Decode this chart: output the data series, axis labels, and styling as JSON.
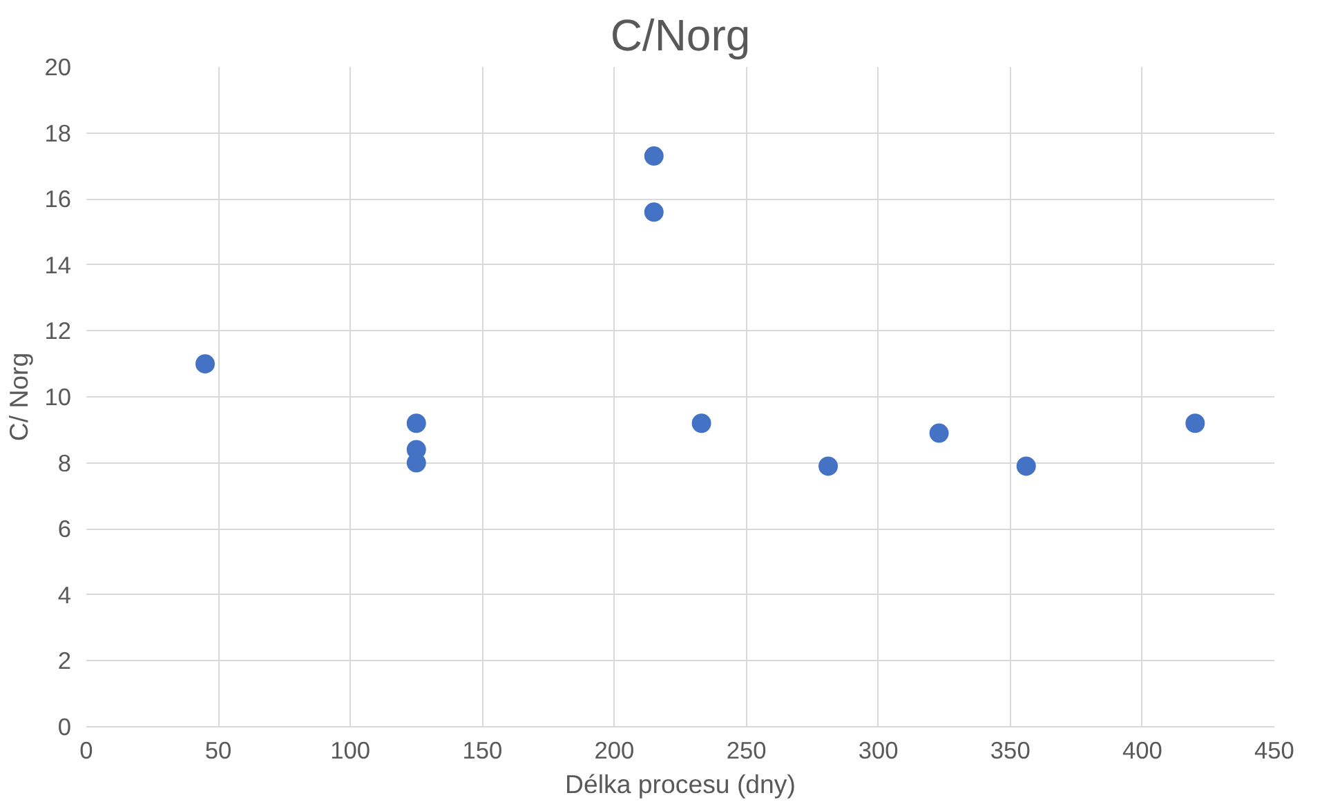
{
  "chart_data": {
    "type": "scatter",
    "title": "C/Norg",
    "xlabel": "Délka procesu (dny)",
    "ylabel": "C/ Norg",
    "x": [
      45,
      125,
      125,
      125,
      215,
      215,
      233,
      281,
      323,
      356,
      420
    ],
    "series": [
      {
        "color": "#4472c4",
        "values": [
          11.0,
          9.2,
          8.4,
          8.0,
          17.3,
          15.6,
          9.2,
          7.9,
          8.9,
          7.9,
          9.2
        ]
      }
    ],
    "xlim": [
      0,
      450
    ],
    "ylim": [
      0,
      20
    ],
    "xticks": [
      0,
      50,
      100,
      150,
      200,
      250,
      300,
      350,
      400,
      450
    ],
    "yticks": [
      0,
      2,
      4,
      6,
      8,
      10,
      12,
      14,
      16,
      18,
      20
    ],
    "grid": true,
    "marker": "circle"
  }
}
